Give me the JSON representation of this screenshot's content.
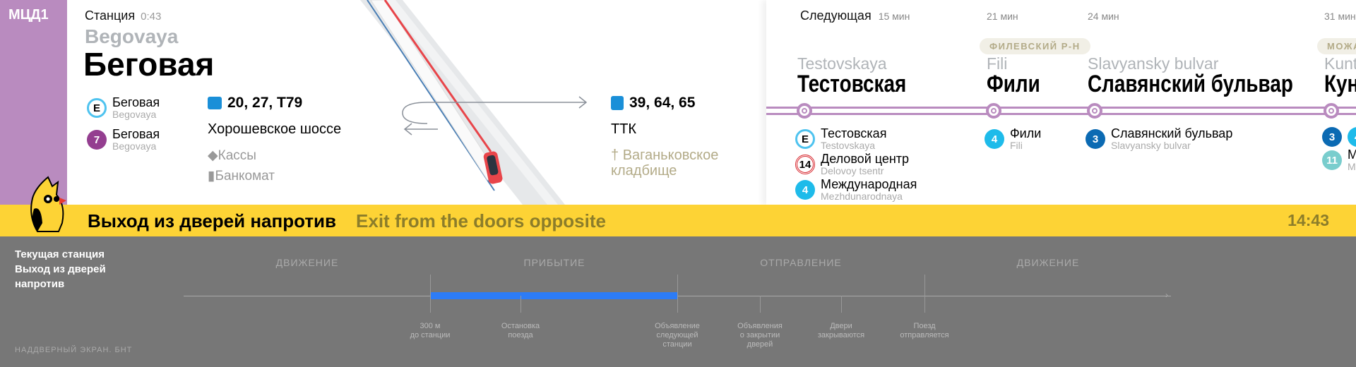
{
  "line_badge": "МЦД1",
  "current": {
    "label": "Станция",
    "time": "0:43",
    "name_lat": "Begovaya",
    "name_ru": "Беговая"
  },
  "transfers": [
    {
      "badge": "E",
      "color": "#4fc3ef",
      "ru": "Беговая",
      "lat": "Begovaya"
    },
    {
      "badge": "7",
      "color": "#943e90",
      "ru": "Беговая",
      "lat": "Begovaya"
    }
  ],
  "exit_left": {
    "icon": "bus-icon",
    "routes": "20, 27, Т79",
    "street": "Хорошевское шоссе",
    "amenities": [
      {
        "icon": "ticket-icon",
        "label": "Кассы"
      },
      {
        "icon": "atm-icon",
        "label": "Банкомат"
      }
    ]
  },
  "exit_right": {
    "icon": "trolleybus-icon",
    "routes": "39, 64, 65",
    "street": "ТТК",
    "landmark": {
      "icon": "cross-icon",
      "label": "Ваганьковское кладбище"
    }
  },
  "next": {
    "label": "Следующая",
    "stations": [
      {
        "time": "15 мин",
        "lat": "Testovskaya",
        "ru": "Тестовская",
        "district": "",
        "transfers": [
          {
            "badge": "E",
            "color": "#4fc3ef",
            "ru": "Тестовская",
            "lat": "Testovskaya"
          },
          {
            "badge": "14",
            "color": "#d7282f",
            "ru": "Деловой центр",
            "lat": "Delovoy tsentr"
          },
          {
            "badge": "4",
            "color": "#1ebbea",
            "ru": "Международная",
            "lat": "Mezhdunarodnaya"
          }
        ]
      },
      {
        "time": "21 мин",
        "lat": "Fili",
        "ru": "Фили",
        "district": "ФИЛЕВСКИЙ Р-Н",
        "transfers": [
          {
            "badge": "4",
            "color": "#1ebbea",
            "ru": "Фили",
            "lat": "Fili"
          }
        ]
      },
      {
        "time": "24 мин",
        "lat": "Slavyansky bulvar",
        "ru": "Славянский бульвар",
        "district": "",
        "transfers": [
          {
            "badge": "3",
            "color": "#0b6ab3",
            "ru": "Славянский бульвар",
            "lat": "Slavyansky bulvar"
          }
        ]
      },
      {
        "time": "31 мин",
        "lat": "Kunts",
        "ru": "Кун",
        "district": "МОЖА",
        "transfers": [
          {
            "badge": "3",
            "color": "#0b6ab3",
            "ru": "",
            "lat": ""
          },
          {
            "badge": "4",
            "color": "#1ebbea",
            "ru": "",
            "lat": ""
          },
          {
            "badge": "11",
            "color": "#79cdcd",
            "ru": "М",
            "lat": "М"
          }
        ]
      }
    ]
  },
  "banner": {
    "ru": "Выход из дверей напротив",
    "en": "Exit from the doors opposite",
    "clock": "14:43"
  },
  "info": {
    "lines": [
      "Текущая станция",
      "Выход из дверей",
      "напротив"
    ],
    "footer": "НАДДВЕРНЫЙ ЭКРАН. БНТ",
    "phases": [
      "ДВИЖЕНИЕ",
      "ПРИБЫТИЕ",
      "ОТПРАВЛЕНИЕ",
      "ДВИЖЕНИЕ"
    ],
    "ticks": [
      "300 м\nдо станции",
      "Остановка\nпоезда",
      "Объявление\nследующей\nстанции",
      "Объявления\nо закрытии\nдверей",
      "Двери\nзакрываются",
      "Поезд\nотправляется"
    ],
    "active_segment": "ПРИБЫТИЕ",
    "colors": {
      "active": "#2d7cf6"
    }
  },
  "colors": {
    "line": "#b98bbf",
    "banner": "#fdd335"
  }
}
